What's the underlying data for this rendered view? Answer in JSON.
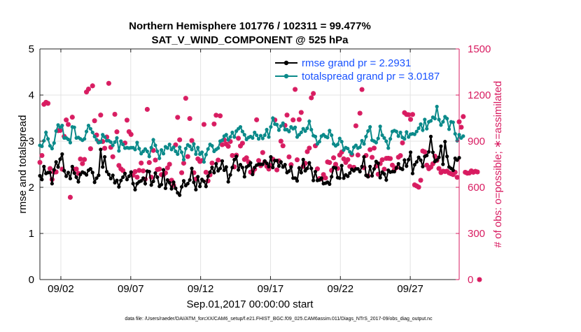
{
  "chart_data": {
    "type": "line",
    "title": "Northern Hemisphere 101776 / 102311 = 99.477%",
    "subtitle": "SAT_V_WIND_COMPONENT @ 525 hPa",
    "xlabel": "Sep.01,2017 00:00:00 start",
    "ylabel_left": "rmse and totalspread",
    "ylabel_right": "# of obs: o=possible; ∗=assimilated",
    "footnote": "data file: /Users/raeder/DAI/ATM_forcXX/CAM6_setup/f.e21.FHIST_BGC.f09_025.CAM6assim.011/Diags_NTrS_2017-09/obs_diag_output.nc",
    "x_range": [
      0.5,
      30.5
    ],
    "ylim_left": [
      0,
      5
    ],
    "ylim_right": [
      0,
      1500
    ],
    "x_ticks": [
      2,
      7,
      12,
      17,
      22,
      27
    ],
    "x_tick_labels": [
      "09/02",
      "09/07",
      "09/12",
      "09/17",
      "09/22",
      "09/27"
    ],
    "y_ticks_left": [
      0,
      1,
      2,
      3,
      4,
      5
    ],
    "y_ticks_right": [
      0,
      300,
      600,
      900,
      1200,
      1500
    ],
    "grid": true,
    "legend_position": "top-right",
    "colors": {
      "rmse": "#000000",
      "totalspread": "#0b8a8a",
      "obs": "#d81b60",
      "legend_text": "#1a53ff"
    },
    "series": [
      {
        "name": "rmse grand pr = 2.2931",
        "color": "#000000",
        "values": [
          2.25,
          2.17,
          2.45,
          2.3,
          2.32,
          2.32,
          2.08,
          2.38,
          2.55,
          2.44,
          2.61,
          2.72,
          2.36,
          2.24,
          2.32,
          2.19,
          2.45,
          2.31,
          2.22,
          2.12,
          2.28,
          2.33,
          2.31,
          2.27,
          2.37,
          2.4,
          2.32,
          2.11,
          2.2,
          2.26,
          2.82,
          2.44,
          2.66,
          2.34,
          2.28,
          2.19,
          2.26,
          2.1,
          2.15,
          2.01,
          2.15,
          2.22,
          2.3,
          2.17,
          2.24,
          2.33,
          2.08,
          1.95,
          2.08,
          2.12,
          2.14,
          2.2,
          2.08,
          2.35,
          2.34,
          2.05,
          2.13,
          2.31,
          2.22,
          2.02,
          2.06,
          2.38,
          1.98,
          2.16,
          2.1,
          1.97,
          2.11,
          1.98,
          1.88,
          1.83,
          2.01,
          2.14,
          2.04,
          2.08,
          2.16,
          2.41,
          2.11,
          1.95,
          2.23,
          2.02,
          2.17,
          2.13,
          2.02,
          2.24,
          2.33,
          2.43,
          2.32,
          2.51,
          2.36,
          2.41,
          2.57,
          2.37,
          2.44,
          2.12,
          2.27,
          2.43,
          2.6,
          2.67,
          2.38,
          2.49,
          2.43,
          2.23,
          2.44,
          2.47,
          2.53,
          2.28,
          2.43,
          2.48,
          2.5,
          2.5,
          2.5,
          2.57,
          2.52,
          2.45,
          2.66,
          2.43,
          2.58,
          2.58,
          2.46,
          2.55,
          2.44,
          2.49,
          2.32,
          2.35,
          2.44,
          2.2,
          2.2,
          2.14,
          2.42,
          2.32,
          2.6,
          2.36,
          2.41,
          2.53,
          2.41,
          2.15,
          2.34,
          2.15,
          2.16,
          2.2,
          2.08,
          2.09,
          2.11,
          2.07,
          2.23,
          2.43,
          2.42,
          2.21,
          2.2,
          2.47,
          2.2,
          2.27,
          2.24,
          2.31,
          2.39,
          2.36,
          2.4,
          2.4,
          2.34,
          2.45,
          2.66,
          2.26,
          2.23,
          2.45,
          2.25,
          2.4,
          2.56,
          2.52,
          2.21,
          2.33,
          2.29,
          2.16,
          2.37,
          2.33,
          2.34,
          2.34,
          2.42,
          2.51,
          2.41,
          2.39,
          2.59,
          2.46,
          2.6,
          2.76,
          2.3,
          2.49,
          2.55,
          2.65,
          2.59,
          2.45,
          2.67,
          2.69,
          2.77,
          3.1,
          2.76,
          2.56,
          2.59,
          2.65,
          2.89,
          2.5,
          2.99,
          2.67,
          2.44,
          2.41,
          2.37,
          2.63,
          2.59,
          2.64
        ]
      },
      {
        "name": "totalspread grand pr = 3.0187",
        "color": "#0b8a8a",
        "values": [
          2.91,
          2.89,
          3.01,
          3.19,
          3.05,
          2.9,
          2.84,
          2.96,
          3.22,
          3.35,
          3.3,
          3.34,
          3.07,
          3.07,
          3.04,
          2.97,
          3.31,
          3.3,
          3.07,
          3.08,
          3.05,
          3.02,
          3.05,
          3.21,
          3.34,
          3.27,
          3.19,
          3.1,
          3.03,
          2.97,
          2.98,
          3.14,
          3.09,
          3.01,
          3.01,
          2.98,
          2.91,
          2.98,
          3.07,
          2.79,
          3.0,
          2.93,
          2.85,
          2.86,
          2.85,
          2.86,
          2.86,
          2.82,
          2.97,
          2.84,
          2.73,
          2.78,
          2.83,
          2.78,
          2.67,
          2.86,
          3.03,
          2.91,
          2.78,
          2.63,
          2.81,
          2.73,
          2.88,
          2.85,
          2.93,
          2.82,
          2.87,
          2.78,
          2.72,
          2.87,
          2.76,
          2.6,
          2.84,
          2.92,
          2.89,
          2.82,
          2.94,
          2.72,
          2.86,
          2.72,
          2.76,
          2.55,
          2.71,
          2.83,
          2.93,
          2.9,
          2.78,
          2.82,
          2.85,
          3.0,
          3.02,
          3.11,
          3.14,
          3.03,
          3.09,
          3.19,
          3.09,
          3.22,
          3.27,
          3.31,
          3.21,
          3.14,
          3.04,
          3.08,
          3.1,
          3.07,
          3.19,
          3.13,
          3.05,
          3.12,
          3.06,
          3.13,
          3.25,
          3.09,
          3.31,
          3.5,
          3.37,
          3.36,
          3.24,
          3.33,
          3.39,
          3.25,
          3.25,
          3.21,
          3.31,
          3.27,
          3.3,
          3.09,
          3.14,
          3.19,
          3.27,
          3.22,
          3.28,
          3.43,
          3.25,
          3.12,
          3.1,
          2.94,
          2.99,
          3.11,
          3.14,
          3.1,
          3.08,
          3.23,
          3.13,
          2.94,
          2.9,
          2.93,
          3.06,
          2.99,
          2.81,
          2.86,
          2.84,
          2.77,
          2.73,
          2.87,
          2.91,
          2.85,
          2.87,
          3.01,
          2.94,
          3.1,
          3.22,
          3.31,
          3.02,
          3.0,
          2.97,
          3.06,
          3.32,
          3.13,
          3.07,
          3.0,
          2.85,
          3.05,
          3.21,
          3.23,
          3.21,
          3.11,
          3.19,
          3.08,
          3.05,
          3.2,
          3.09,
          3.15,
          3.16,
          3.15,
          3.21,
          3.28,
          3.37,
          3.24,
          3.47,
          3.27,
          3.42,
          3.44,
          3.52,
          3.49,
          3.75,
          3.47,
          3.35,
          3.42,
          3.53,
          3.49,
          3.26,
          3.42,
          3.41,
          3.16,
          3.01,
          3.14,
          3.07,
          3.11
        ]
      }
    ],
    "obs_assimilated": [
      762,
      807,
      1140,
      1153,
      1146,
      722,
      651,
      699,
      700,
      969,
      970,
      718,
      931,
      1038,
      1009,
      535,
      1056,
      716,
      719,
      691,
      784,
      754,
      781,
      1220,
      1239,
      851,
      1260,
      1033,
      940,
      896,
      1070,
      898,
      854,
      927,
      1276,
      860,
      799,
      1075,
      961,
      742,
      720,
      709,
      888,
      1037,
      962,
      944,
      679,
      702,
      666,
      710,
      758,
      707,
      653,
      1107,
      761,
      666,
      840,
      777,
      716,
      719,
      683,
      682,
      694,
      726,
      750,
      646,
      614,
      876,
      1055,
      909,
      695,
      757,
      1179,
      800,
      1047,
      904,
      695,
      654,
      785,
      768,
      774,
      1009,
      698,
      642,
      681,
      758,
      1012,
      1069,
      777,
      1065,
      877,
      908,
      881,
      867,
      898,
      807,
      733,
      809,
      919,
      869,
      887,
      781,
      792,
      765,
      699,
      699,
      718,
      1039,
      774,
      741,
      826,
      765,
      737,
      719,
      742,
      783,
      1038,
      713,
      772,
      900,
      870,
      1003,
      1070,
      798,
      747,
      1038,
      1237,
      779,
      1041,
      1087,
      736,
      756,
      832,
      855,
      1182,
      1210,
      870,
      720,
      657,
      655,
      683,
      661,
      765,
      761,
      710,
      792,
      750,
      723,
      810,
      829,
      785,
      762,
      780,
      736,
      812,
      730,
      1000,
      810,
      1082,
      1236,
      728,
      807,
      674,
      845,
      795,
      855,
      738,
      685,
      754,
      779,
      718,
      788,
      789,
      787,
      744,
      715,
      728,
      796,
      806,
      889,
      1085,
      1074,
      1072,
      1042,
      1074,
      616,
      609,
      601,
      646,
      836,
      830,
      744,
      721,
      731,
      753,
      803,
      775,
      722,
      696,
      705,
      703,
      705,
      694,
      688,
      683,
      698,
      665,
      1026,
      991,
      1060,
      698,
      692,
      693,
      707,
      698,
      704,
      700,
      0
    ],
    "obs_possible": [
      762,
      807,
      1140,
      1153,
      1146,
      722,
      651,
      699,
      700,
      969,
      970,
      718,
      931,
      1038,
      1009,
      535,
      1056,
      716,
      719,
      691,
      784,
      754,
      781,
      1220,
      1239,
      851,
      1260,
      1033,
      940,
      896,
      1070,
      898,
      854,
      927,
      1276,
      860,
      799,
      1075,
      961,
      742,
      720,
      709,
      888,
      1037,
      962,
      944,
      679,
      702,
      666,
      710,
      758,
      707,
      653,
      1107,
      761,
      666,
      840,
      777,
      716,
      719,
      683,
      682,
      694,
      726,
      750,
      646,
      614,
      876,
      1055,
      909,
      695,
      757,
      1179,
      800,
      1047,
      904,
      695,
      654,
      785,
      768,
      774,
      1009,
      698,
      642,
      681,
      758,
      1012,
      1069,
      777,
      1065,
      877,
      908,
      881,
      867,
      898,
      807,
      733,
      809,
      919,
      869,
      887,
      781,
      792,
      765,
      699,
      699,
      718,
      1039,
      774,
      741,
      826,
      765,
      737,
      719,
      742,
      783,
      1038,
      713,
      772,
      900,
      870,
      1003,
      1070,
      798,
      747,
      1038,
      1237,
      779,
      1041,
      1087,
      736,
      756,
      832,
      855,
      1182,
      1210,
      870,
      720,
      657,
      655,
      683,
      661,
      765,
      761,
      710,
      792,
      750,
      723,
      810,
      829,
      785,
      762,
      780,
      736,
      812,
      730,
      1000,
      810,
      1082,
      1236,
      728,
      807,
      674,
      845,
      795,
      855,
      738,
      685,
      754,
      779,
      718,
      788,
      789,
      787,
      744,
      715,
      728,
      796,
      806,
      889,
      1085,
      1074,
      1072,
      1042,
      1074,
      616,
      609,
      601,
      646,
      836,
      830,
      744,
      721,
      731,
      753,
      803,
      775,
      722,
      696,
      705,
      703,
      705,
      694,
      688,
      683,
      698,
      665,
      1026,
      991,
      1060,
      698,
      692,
      693,
      707,
      698,
      704,
      700,
      0
    ]
  }
}
